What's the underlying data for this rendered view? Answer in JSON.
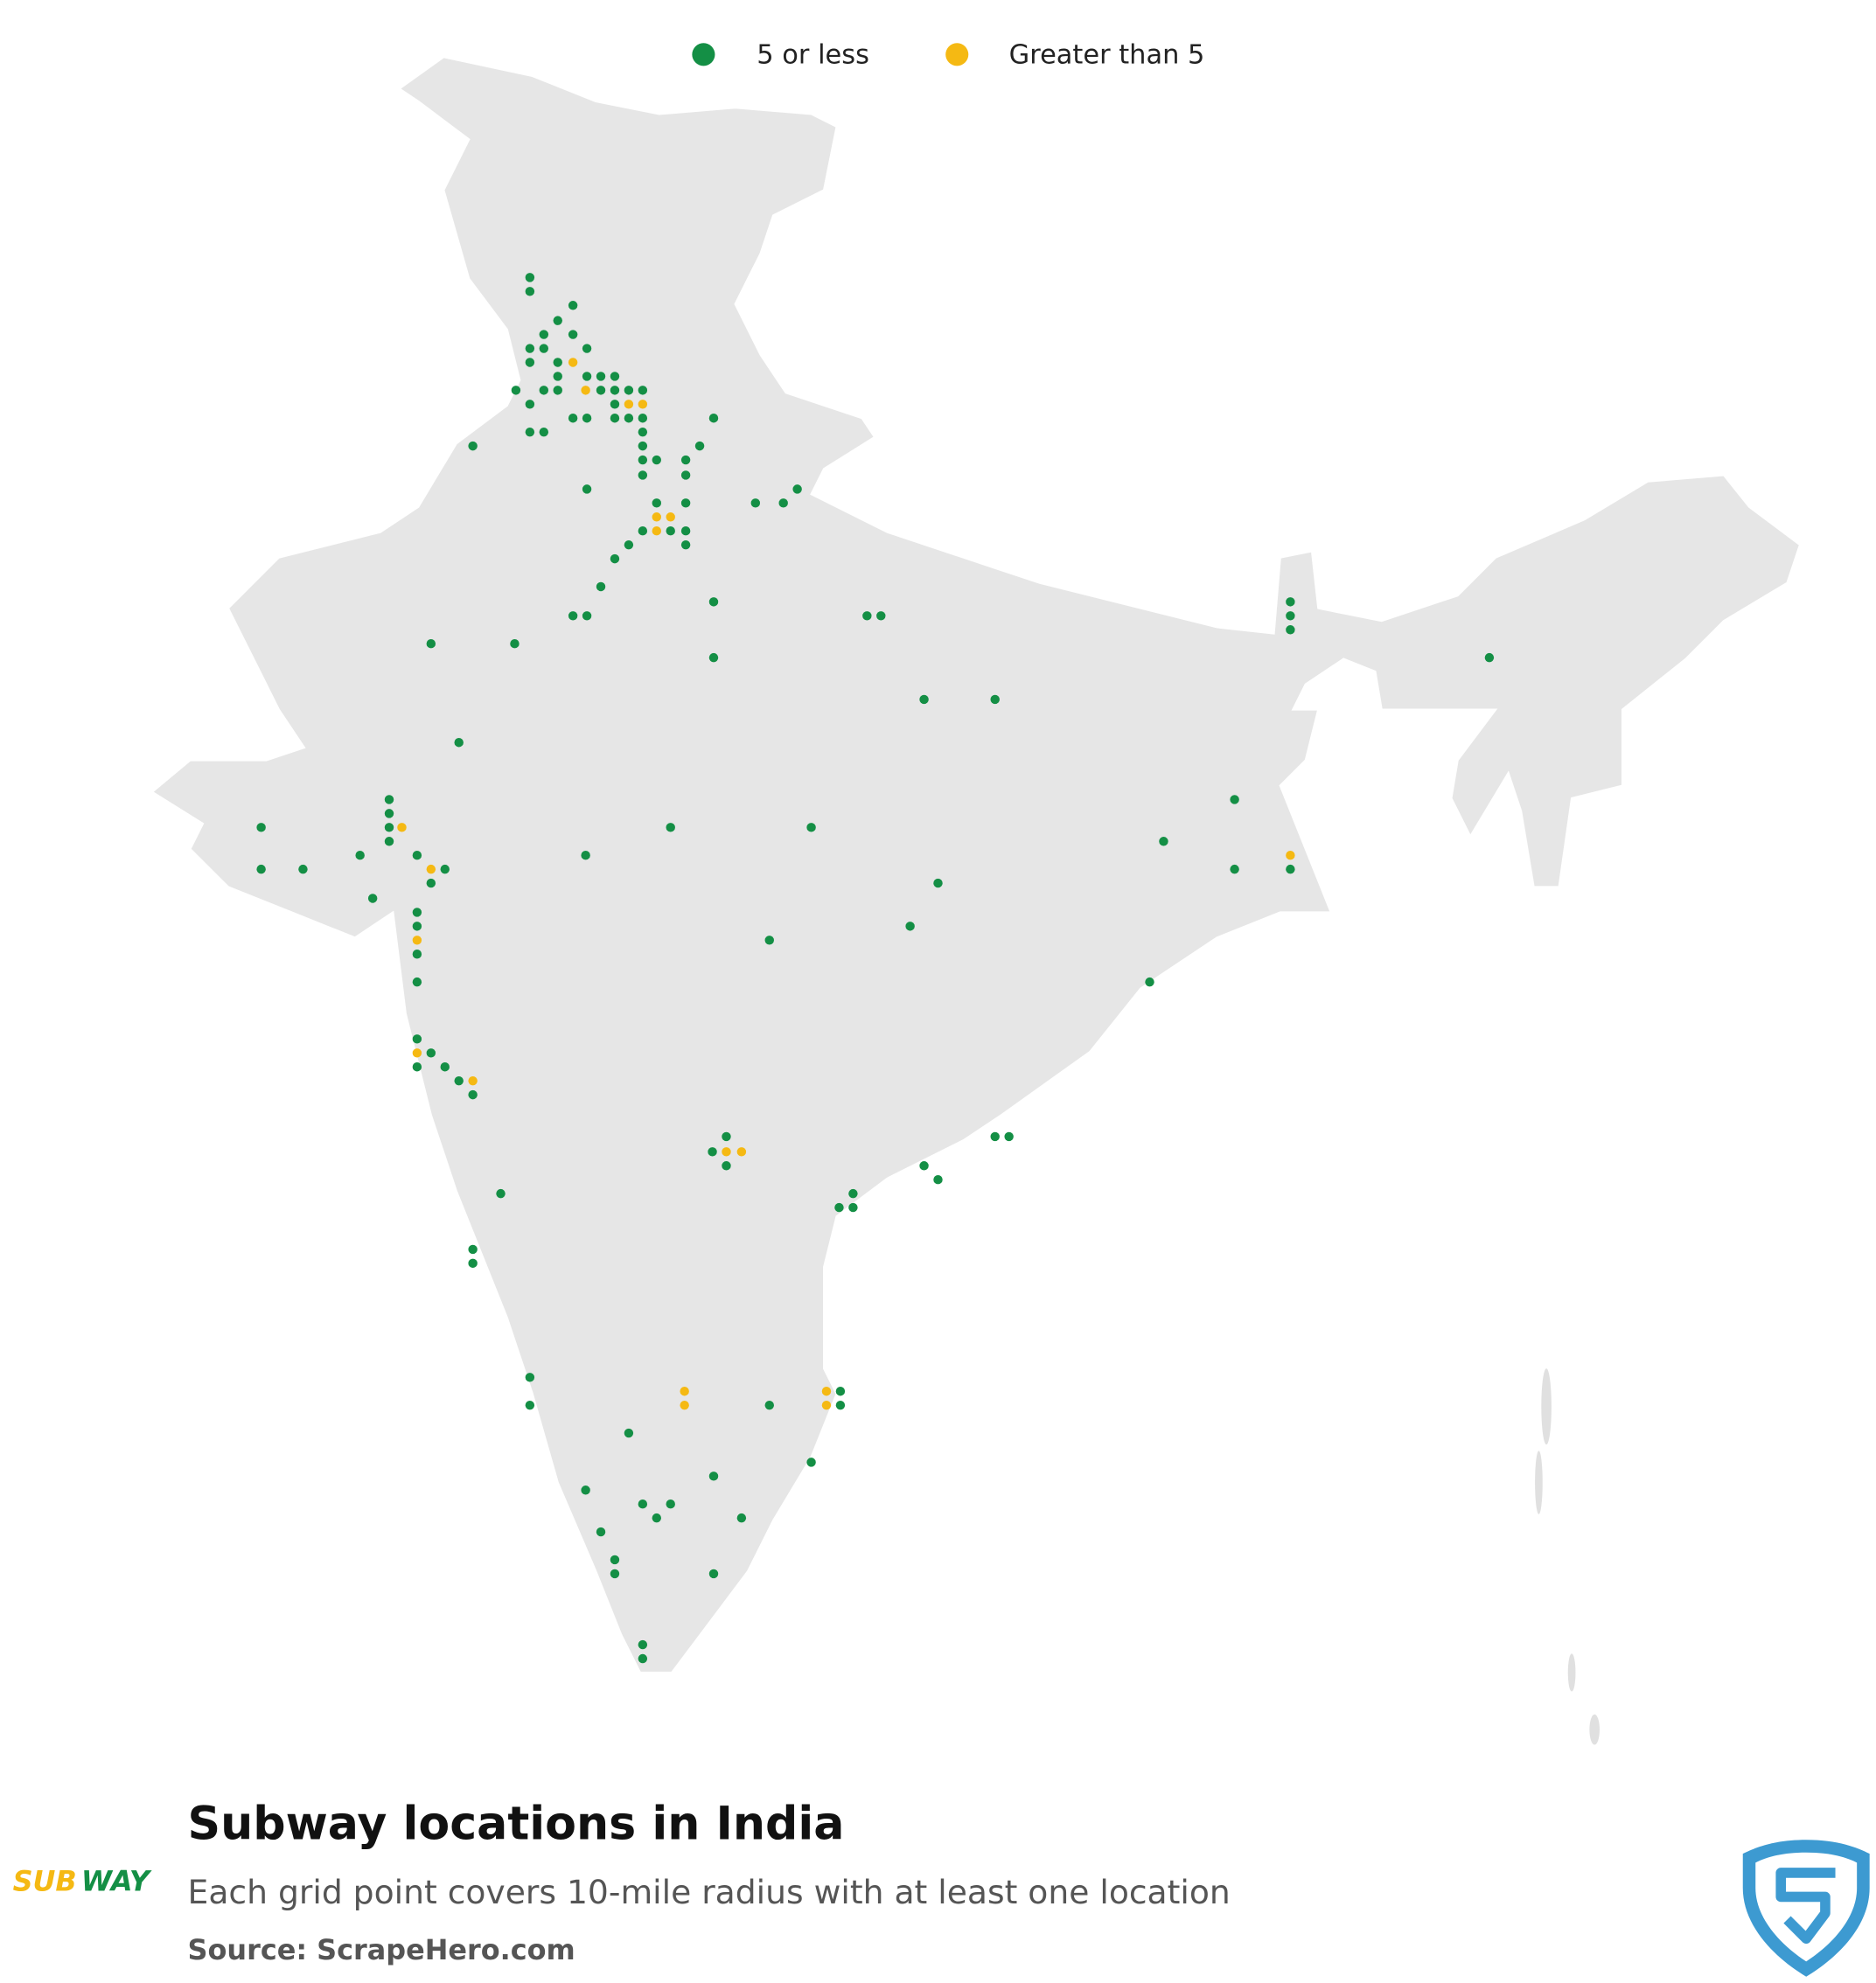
{
  "legend": [
    {
      "label": "5 or less",
      "color": "#148f45"
    },
    {
      "label": "Greater than 5",
      "color": "#f5b913"
    }
  ],
  "title": "Subway locations in India",
  "subtitle": "Each grid point covers 10-mile radius with at least one location",
  "source": "Source: ScrapeHero.com",
  "brand_logo": {
    "left": "SUB",
    "right": "WAY"
  }
}
